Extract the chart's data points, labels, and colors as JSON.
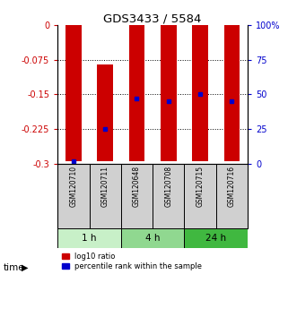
{
  "title": "GDS3433 / 5584",
  "samples": [
    "GSM120710",
    "GSM120711",
    "GSM120648",
    "GSM120708",
    "GSM120715",
    "GSM120716"
  ],
  "groups": [
    {
      "label": "1 h",
      "indices": [
        0,
        1
      ],
      "color": "#c8f0c8"
    },
    {
      "label": "4 h",
      "indices": [
        2,
        3
      ],
      "color": "#90d890"
    },
    {
      "label": "24 h",
      "indices": [
        4,
        5
      ],
      "color": "#40b840"
    }
  ],
  "bar_bottom": [
    0.0,
    -0.085,
    0.0,
    0.0,
    0.0,
    0.0
  ],
  "bar_top": [
    -0.295,
    -0.295,
    -0.295,
    -0.295,
    -0.295,
    -0.295
  ],
  "percentile_rank": [
    2,
    25,
    47,
    45,
    50,
    45
  ],
  "ylim": [
    -0.3,
    0.0
  ],
  "y2lim": [
    0,
    100
  ],
  "yticks": [
    0,
    -0.075,
    -0.15,
    -0.225,
    -0.3
  ],
  "ytick_labels": [
    "0",
    "-0.075",
    "-0.15",
    "-0.225",
    "-0.3"
  ],
  "y2ticks": [
    100,
    75,
    50,
    25,
    0
  ],
  "y2tick_labels": [
    "100%",
    "75",
    "50",
    "25",
    "0"
  ],
  "bar_color": "#cc0000",
  "dot_color": "#0000cc",
  "bar_width": 0.5,
  "left_tick_color": "#cc0000",
  "right_tick_color": "#0000cc",
  "grid_ticks": [
    -0.075,
    -0.15,
    -0.225
  ],
  "label_bg_color": "#d0d0d0",
  "time_label": "time"
}
